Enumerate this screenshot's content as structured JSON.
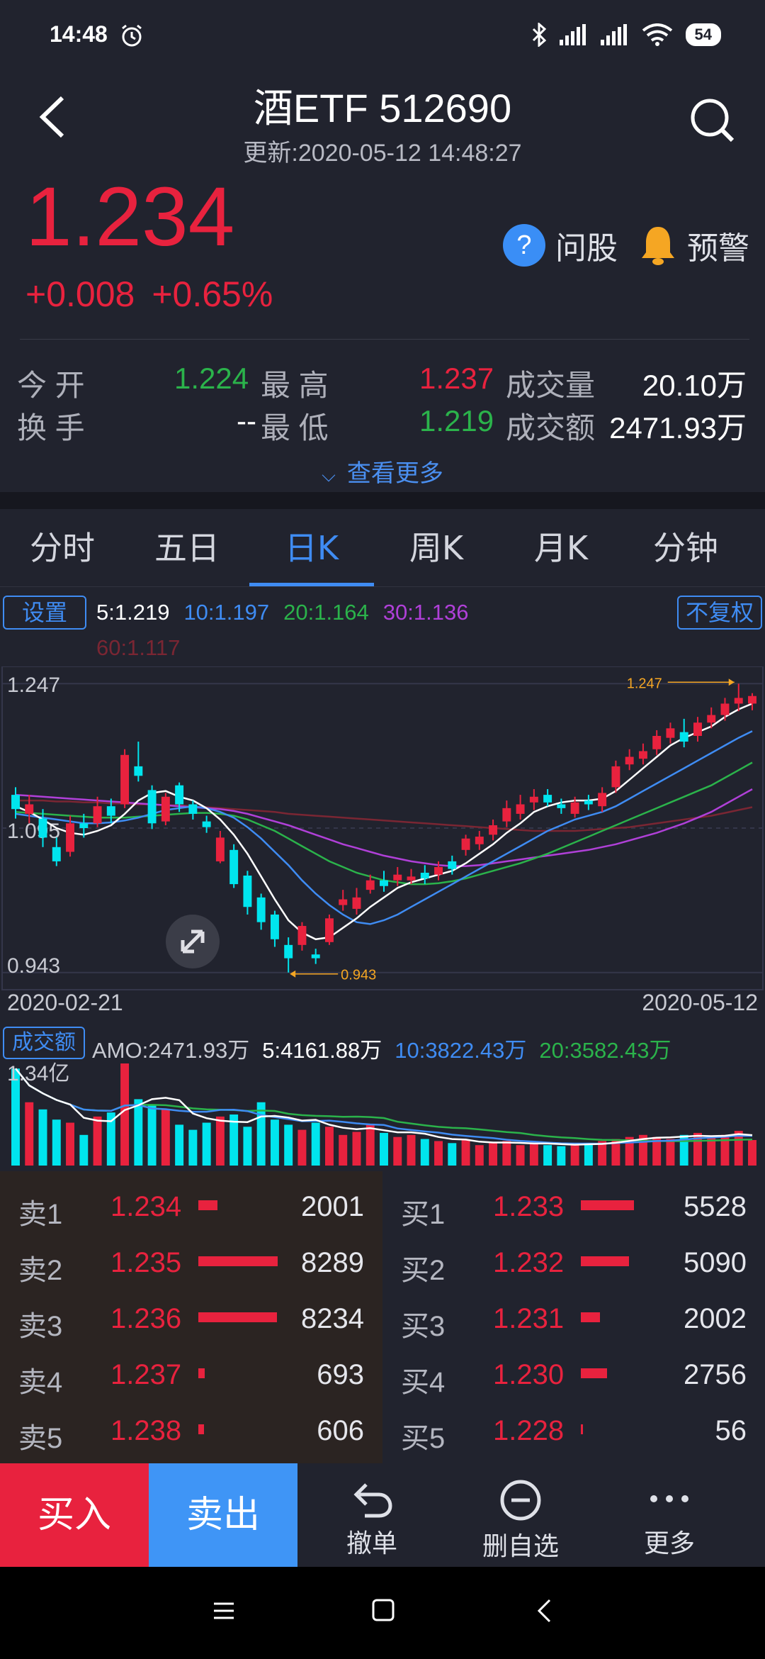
{
  "status": {
    "time": "14:48",
    "battery": "54"
  },
  "header": {
    "title": "酒ETF 512690",
    "updated": "更新:2020-05-12 14:48:27"
  },
  "quote": {
    "price": "1.234",
    "change": "+0.008",
    "change_pct": "+0.65%"
  },
  "actions_top": {
    "ask": "问股",
    "alert": "预警"
  },
  "stats": {
    "open_label": "今 开",
    "open": "1.224",
    "high_label": "最 高",
    "high": "1.237",
    "volume_label": "成交量",
    "volume": "20.10万",
    "turnover_label": "换 手",
    "turnover": "--",
    "low_label": "最 低",
    "low": "1.219",
    "amount_label": "成交额",
    "amount": "2471.93万"
  },
  "more_label": "查看更多",
  "tabs": [
    {
      "label": "分时"
    },
    {
      "label": "五日"
    },
    {
      "label": "日K"
    },
    {
      "label": "周K"
    },
    {
      "label": "月K"
    },
    {
      "label": "分钟"
    }
  ],
  "indicators": {
    "settings": "设置",
    "adjust": "不复权",
    "ma5": "5:1.219",
    "ma10": "10:1.197",
    "ma20": "20:1.164",
    "ma30": "30:1.136",
    "ma60": "60:1.117"
  },
  "chart_data": {
    "type": "candlestick",
    "y_ticks": [
      "1.247",
      "1.095",
      "0.943"
    ],
    "high_marker": "1.247",
    "low_marker": "0.943",
    "start_date": "2020-02-21",
    "end_date": "2020-05-12",
    "ylim": [
      0.943,
      1.247
    ],
    "candles": [
      [
        1.13,
        1.115,
        1.138,
        1.105
      ],
      [
        1.11,
        1.12,
        1.13,
        1.1
      ],
      [
        1.105,
        1.085,
        1.115,
        1.075
      ],
      [
        1.075,
        1.06,
        1.085,
        1.055
      ],
      [
        1.07,
        1.1,
        1.108,
        1.065
      ],
      [
        1.1,
        1.095,
        1.11,
        1.085
      ],
      [
        1.1,
        1.118,
        1.128,
        1.096
      ],
      [
        1.118,
        1.108,
        1.126,
        1.1
      ],
      [
        1.12,
        1.172,
        1.178,
        1.116
      ],
      [
        1.16,
        1.15,
        1.186,
        1.144
      ],
      [
        1.135,
        1.1,
        1.14,
        1.094
      ],
      [
        1.102,
        1.128,
        1.132,
        1.098
      ],
      [
        1.14,
        1.12,
        1.143,
        1.112
      ],
      [
        1.12,
        1.11,
        1.124,
        1.104
      ],
      [
        1.102,
        1.096,
        1.108,
        1.09
      ],
      [
        1.06,
        1.085,
        1.092,
        1.058
      ],
      [
        1.072,
        1.036,
        1.078,
        1.032
      ],
      [
        1.045,
        1.012,
        1.05,
        1.004
      ],
      [
        1.022,
        0.996,
        1.026,
        0.988
      ],
      [
        1.004,
        0.978,
        1.008,
        0.97
      ],
      [
        0.972,
        0.958,
        0.98,
        0.943
      ],
      [
        0.972,
        0.992,
        0.996,
        0.966
      ],
      [
        0.962,
        0.958,
        0.968,
        0.952
      ],
      [
        0.975,
        1.0,
        1.004,
        0.972
      ],
      [
        1.014,
        1.02,
        1.03,
        1.008
      ],
      [
        1.01,
        1.022,
        1.032,
        1.004
      ],
      [
        1.03,
        1.04,
        1.046,
        1.026
      ],
      [
        1.04,
        1.034,
        1.05,
        1.028
      ],
      [
        1.04,
        1.046,
        1.054,
        1.034
      ],
      [
        1.04,
        1.044,
        1.052,
        1.036
      ],
      [
        1.048,
        1.042,
        1.056,
        1.036
      ],
      [
        1.046,
        1.054,
        1.06,
        1.04
      ],
      [
        1.06,
        1.052,
        1.066,
        1.046
      ],
      [
        1.072,
        1.084,
        1.088,
        1.066
      ],
      [
        1.078,
        1.086,
        1.092,
        1.072
      ],
      [
        1.088,
        1.098,
        1.104,
        1.082
      ],
      [
        1.102,
        1.116,
        1.124,
        1.096
      ],
      [
        1.11,
        1.12,
        1.13,
        1.104
      ],
      [
        1.122,
        1.128,
        1.136,
        1.114
      ],
      [
        1.13,
        1.122,
        1.136,
        1.118
      ],
      [
        1.12,
        1.116,
        1.126,
        1.11
      ],
      [
        1.11,
        1.122,
        1.128,
        1.106
      ],
      [
        1.124,
        1.12,
        1.13,
        1.114
      ],
      [
        1.118,
        1.132,
        1.138,
        1.112
      ],
      [
        1.138,
        1.16,
        1.166,
        1.132
      ],
      [
        1.162,
        1.17,
        1.178,
        1.156
      ],
      [
        1.168,
        1.176,
        1.184,
        1.162
      ],
      [
        1.178,
        1.192,
        1.198,
        1.172
      ],
      [
        1.19,
        1.2,
        1.206,
        1.184
      ],
      [
        1.196,
        1.186,
        1.21,
        1.18
      ],
      [
        1.192,
        1.206,
        1.212,
        1.186
      ],
      [
        1.206,
        1.214,
        1.222,
        1.2
      ],
      [
        1.214,
        1.226,
        1.232,
        1.208
      ],
      [
        1.226,
        1.232,
        1.247,
        1.218
      ],
      [
        1.226,
        1.234,
        1.237,
        1.219
      ]
    ],
    "ma5": [
      1.118,
      1.112,
      1.104,
      1.095,
      1.09,
      1.088,
      1.092,
      1.098,
      1.11,
      1.124,
      1.132,
      1.134,
      1.128,
      1.124,
      1.116,
      1.104,
      1.088,
      1.068,
      1.044,
      1.02,
      0.998,
      0.985,
      0.978,
      0.98,
      0.99,
      1.0,
      1.012,
      1.022,
      1.032,
      1.038,
      1.042,
      1.046,
      1.05,
      1.058,
      1.068,
      1.078,
      1.09,
      1.1,
      1.112,
      1.118,
      1.122,
      1.124,
      1.124,
      1.126,
      1.134,
      1.146,
      1.158,
      1.17,
      1.182,
      1.19,
      1.196,
      1.202,
      1.212,
      1.22,
      1.226
    ],
    "ma10": [
      1.11,
      1.108,
      1.106,
      1.104,
      1.102,
      1.1,
      1.1,
      1.101,
      1.103,
      1.106,
      1.11,
      1.114,
      1.116,
      1.118,
      1.116,
      1.112,
      1.106,
      1.096,
      1.084,
      1.07,
      1.056,
      1.04,
      1.026,
      1.014,
      1.004,
      0.996,
      0.994,
      0.998,
      1.004,
      1.012,
      1.02,
      1.028,
      1.036,
      1.044,
      1.052,
      1.06,
      1.068,
      1.076,
      1.084,
      1.092,
      1.098,
      1.104,
      1.108,
      1.112,
      1.118,
      1.126,
      1.134,
      1.142,
      1.15,
      1.158,
      1.166,
      1.174,
      1.182,
      1.19,
      1.197
    ],
    "ma20": [
      1.112,
      1.111,
      1.11,
      1.109,
      1.108,
      1.107,
      1.106,
      1.106,
      1.106,
      1.107,
      1.108,
      1.109,
      1.11,
      1.111,
      1.111,
      1.11,
      1.108,
      1.104,
      1.098,
      1.092,
      1.084,
      1.076,
      1.068,
      1.06,
      1.054,
      1.048,
      1.044,
      1.04,
      1.038,
      1.036,
      1.036,
      1.037,
      1.039,
      1.042,
      1.046,
      1.05,
      1.054,
      1.058,
      1.063,
      1.068,
      1.074,
      1.08,
      1.086,
      1.092,
      1.098,
      1.104,
      1.11,
      1.116,
      1.122,
      1.128,
      1.134,
      1.14,
      1.148,
      1.156,
      1.164
    ],
    "ma30": [
      1.13,
      1.129,
      1.128,
      1.127,
      1.126,
      1.125,
      1.124,
      1.123,
      1.122,
      1.121,
      1.12,
      1.119,
      1.118,
      1.117,
      1.116,
      1.115,
      1.113,
      1.11,
      1.106,
      1.102,
      1.098,
      1.093,
      1.088,
      1.083,
      1.078,
      1.074,
      1.07,
      1.066,
      1.063,
      1.06,
      1.058,
      1.056,
      1.055,
      1.055,
      1.056,
      1.058,
      1.06,
      1.062,
      1.064,
      1.066,
      1.068,
      1.07,
      1.072,
      1.075,
      1.078,
      1.082,
      1.086,
      1.09,
      1.095,
      1.1,
      1.106,
      1.112,
      1.12,
      1.128,
      1.136
    ],
    "ma60": [
      1.124,
      1.124,
      1.124,
      1.123,
      1.123,
      1.122,
      1.122,
      1.121,
      1.121,
      1.12,
      1.12,
      1.119,
      1.119,
      1.118,
      1.117,
      1.116,
      1.115,
      1.114,
      1.113,
      1.112,
      1.11,
      1.109,
      1.108,
      1.107,
      1.106,
      1.105,
      1.104,
      1.103,
      1.102,
      1.101,
      1.1,
      1.099,
      1.098,
      1.097,
      1.096,
      1.095,
      1.094,
      1.093,
      1.092,
      1.092,
      1.092,
      1.092,
      1.093,
      1.094,
      1.095,
      1.096,
      1.098,
      1.1,
      1.102,
      1.104,
      1.106,
      1.108,
      1.111,
      1.114,
      1.117
    ]
  },
  "amount": {
    "label": "成交额",
    "amo": "AMO:2471.93万",
    "ma5": "5:4161.88万",
    "ma10": "10:3822.43万",
    "ma20": "20:3582.43万",
    "axis_max": "1.34亿",
    "bars": [
      0.95,
      0.62,
      0.55,
      0.45,
      0.42,
      0.3,
      0.48,
      0.52,
      1.0,
      0.65,
      0.6,
      0.55,
      0.4,
      0.35,
      0.42,
      0.48,
      0.5,
      0.38,
      0.62,
      0.45,
      0.4,
      0.35,
      0.42,
      0.38,
      0.3,
      0.33,
      0.4,
      0.32,
      0.28,
      0.3,
      0.26,
      0.24,
      0.22,
      0.25,
      0.2,
      0.22,
      0.24,
      0.2,
      0.22,
      0.2,
      0.19,
      0.21,
      0.22,
      0.24,
      0.26,
      0.28,
      0.3,
      0.28,
      0.26,
      0.3,
      0.32,
      0.28,
      0.3,
      0.34,
      0.25
    ]
  },
  "book": {
    "sell": [
      {
        "label": "卖1",
        "price": "1.234",
        "vol": "2001",
        "ratio": 0.24
      },
      {
        "label": "卖2",
        "price": "1.235",
        "vol": "8289",
        "ratio": 1.0
      },
      {
        "label": "卖3",
        "price": "1.236",
        "vol": "8234",
        "ratio": 0.99
      },
      {
        "label": "卖4",
        "price": "1.237",
        "vol": "693",
        "ratio": 0.08
      },
      {
        "label": "卖5",
        "price": "1.238",
        "vol": "606",
        "ratio": 0.07
      }
    ],
    "buy": [
      {
        "label": "买1",
        "price": "1.233",
        "vol": "5528",
        "ratio": 0.67
      },
      {
        "label": "买2",
        "price": "1.232",
        "vol": "5090",
        "ratio": 0.61
      },
      {
        "label": "买3",
        "price": "1.231",
        "vol": "2002",
        "ratio": 0.24
      },
      {
        "label": "买4",
        "price": "1.230",
        "vol": "2756",
        "ratio": 0.33
      },
      {
        "label": "买5",
        "price": "1.228",
        "vol": "56",
        "ratio": 0.01
      }
    ]
  },
  "actions": {
    "buy": "买入",
    "sell": "卖出",
    "cancel": "撤单",
    "remove": "删自选",
    "more": "更多"
  },
  "colors": {
    "up": "#e8223e",
    "down": "#00e5ee",
    "accent": "#3f8cf3",
    "ma5": "#ffffff",
    "ma10": "#3f8cf3",
    "ma20": "#2bb34b",
    "ma30": "#b040d8",
    "ma60": "#7a2633"
  }
}
